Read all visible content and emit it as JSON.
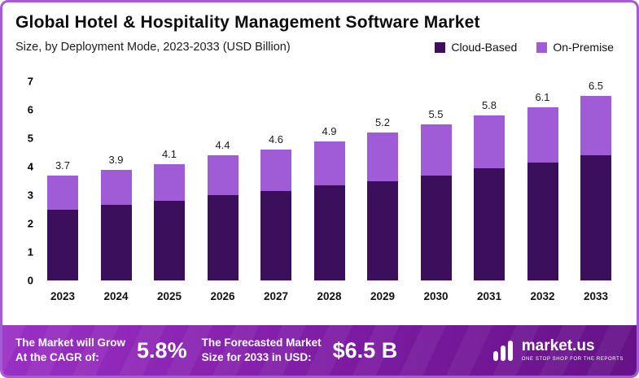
{
  "header": {
    "title": "Global Hotel & Hospitality Management Software Market",
    "subtitle": "Size, by Deployment Mode, 2023-2033 (USD Billion)"
  },
  "legend": [
    {
      "label": "Cloud-Based",
      "color": "#3c0f5d"
    },
    {
      "label": "On-Premise",
      "color": "#a05cd6"
    }
  ],
  "chart_data": {
    "type": "bar",
    "stacked": true,
    "title": "Global Hotel & Hospitality Management Software Market",
    "subtitle": "Size, by Deployment Mode, 2023-2033 (USD Billion)",
    "categories": [
      "2023",
      "2024",
      "2025",
      "2026",
      "2027",
      "2028",
      "2029",
      "2030",
      "2031",
      "2032",
      "2033"
    ],
    "series": [
      {
        "name": "Cloud-Based",
        "color": "#3c0f5d",
        "values": [
          2.5,
          2.65,
          2.8,
          3.0,
          3.15,
          3.35,
          3.5,
          3.7,
          3.95,
          4.15,
          4.4
        ]
      },
      {
        "name": "On-Premise",
        "color": "#a05cd6",
        "values": [
          1.2,
          1.25,
          1.3,
          1.4,
          1.45,
          1.55,
          1.7,
          1.8,
          1.85,
          1.95,
          2.1
        ]
      }
    ],
    "totals": [
      3.7,
      3.9,
      4.1,
      4.4,
      4.6,
      4.9,
      5.2,
      5.5,
      5.8,
      6.1,
      6.5
    ],
    "xlabel": "",
    "ylabel": "",
    "ylim": [
      0,
      7
    ],
    "yticks": [
      0,
      1,
      2,
      3,
      4,
      5,
      6,
      7
    ],
    "grid": false,
    "legend_position": "top-right"
  },
  "footer": {
    "cagr_label_line1": "The Market will Grow",
    "cagr_label_line2": "At the CAGR of:",
    "cagr_value": "5.8%",
    "forecast_label_line1": "The Forecasted Market",
    "forecast_label_line2": "Size for 2033 in USD:",
    "forecast_value": "$6.5 B",
    "brand_name": "market.us",
    "brand_tagline": "ONE STOP SHOP FOR THE REPORTS"
  }
}
